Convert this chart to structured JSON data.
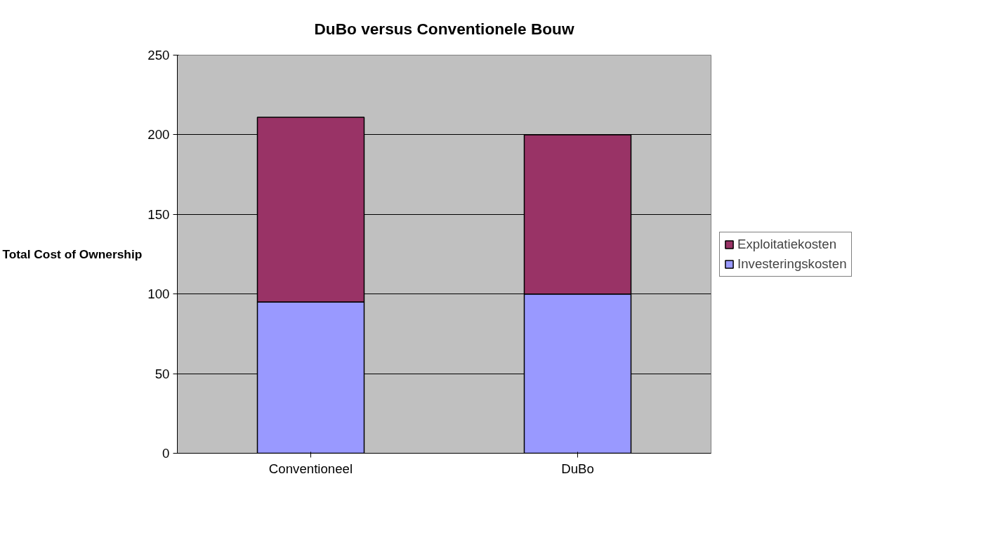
{
  "chart_data": {
    "type": "bar",
    "title": "DuBo versus Conventionele Bouw",
    "ylabel": "Total Cost of Ownership",
    "categories": [
      "Conventioneel",
      "DuBo"
    ],
    "stacked": true,
    "series": [
      {
        "name": "Investeringskosten",
        "color": "#9999ff",
        "values": [
          95,
          100
        ]
      },
      {
        "name": "Exploitatiekosten",
        "color": "#993366",
        "values": [
          116,
          100
        ]
      }
    ],
    "ylim": [
      0,
      250
    ],
    "yticks": [
      0,
      50,
      100,
      150,
      200,
      250
    ],
    "grid": "y",
    "legend": "right"
  }
}
